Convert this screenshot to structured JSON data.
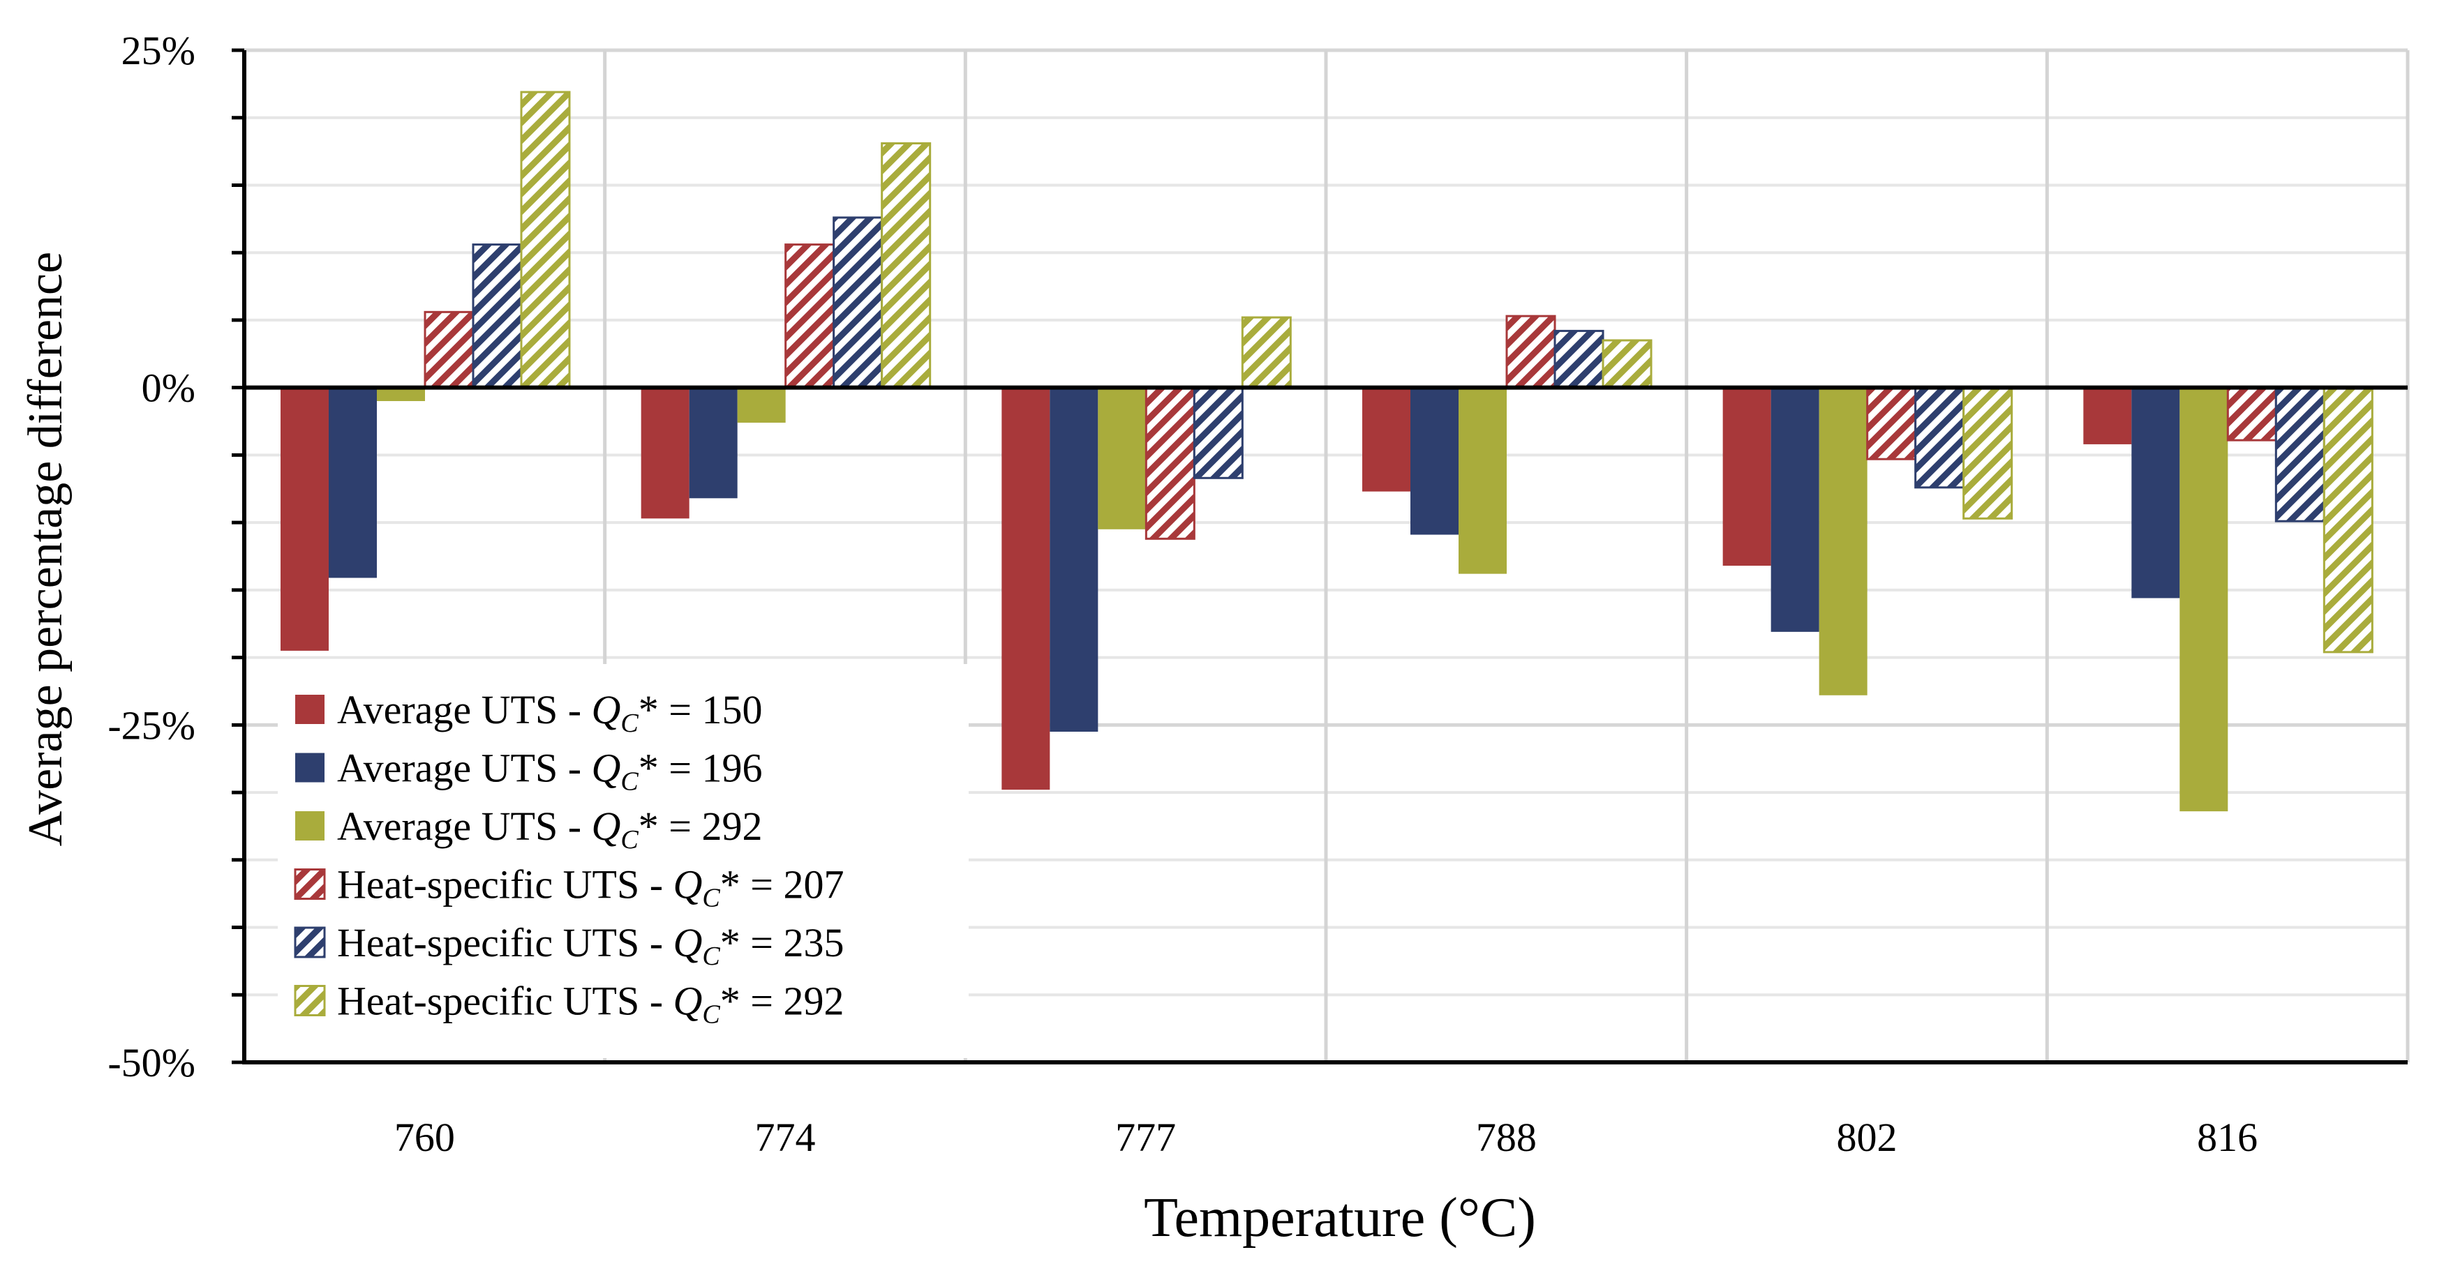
{
  "chart_data": {
    "type": "bar",
    "title": "",
    "xlabel": "Temperature (°C)",
    "ylabel": "Average percentage difference",
    "categories": [
      "760",
      "774",
      "777",
      "788",
      "802",
      "816"
    ],
    "ylim": [
      -50,
      25
    ],
    "yticks": [
      25,
      0,
      -25,
      -50
    ],
    "ytick_labels": [
      "25%",
      "0%",
      "-25%",
      "-50%"
    ],
    "minor_tick_step": 5,
    "grid": true,
    "legend_position": "bottom-left",
    "series": [
      {
        "name": "Average UTS - ",
        "q_label": "Q",
        "q_sub": "C",
        "q_rest": "* = 150",
        "style": "solid",
        "color": "#A8383A",
        "values": [
          -19.5,
          -9.7,
          -29.8,
          -7.7,
          -13.2,
          -4.2
        ]
      },
      {
        "name": "Average UTS - ",
        "q_label": "Q",
        "q_sub": "C",
        "q_rest": "* = 196",
        "style": "solid",
        "color": "#2E3F6E",
        "values": [
          -14.1,
          -8.2,
          -25.5,
          -10.9,
          -18.1,
          -15.6
        ]
      },
      {
        "name": "Average UTS - ",
        "q_label": "Q",
        "q_sub": "C",
        "q_rest": "* = 292",
        "style": "solid",
        "color": "#A9AC3C",
        "values": [
          -1.0,
          -2.6,
          -10.5,
          -13.8,
          -22.8,
          -31.4
        ]
      },
      {
        "name": "Heat-specific UTS - ",
        "q_label": "Q",
        "q_sub": "C",
        "q_rest": "* = 207",
        "style": "hatched",
        "color": "#A8383A",
        "values": [
          5.6,
          10.6,
          -11.2,
          5.3,
          -5.3,
          -3.9
        ]
      },
      {
        "name": "Heat-specific UTS - ",
        "q_label": "Q",
        "q_sub": "C",
        "q_rest": "* = 235",
        "style": "hatched",
        "color": "#2E3F6E",
        "values": [
          10.6,
          12.6,
          -6.7,
          4.2,
          -7.4,
          -9.9
        ]
      },
      {
        "name": "Heat-specific UTS - ",
        "q_label": "Q",
        "q_sub": "C",
        "q_rest": "* = 292",
        "style": "hatched",
        "color": "#A9AC3C",
        "values": [
          21.9,
          18.1,
          5.2,
          3.5,
          -9.7,
          -19.6
        ]
      }
    ]
  }
}
